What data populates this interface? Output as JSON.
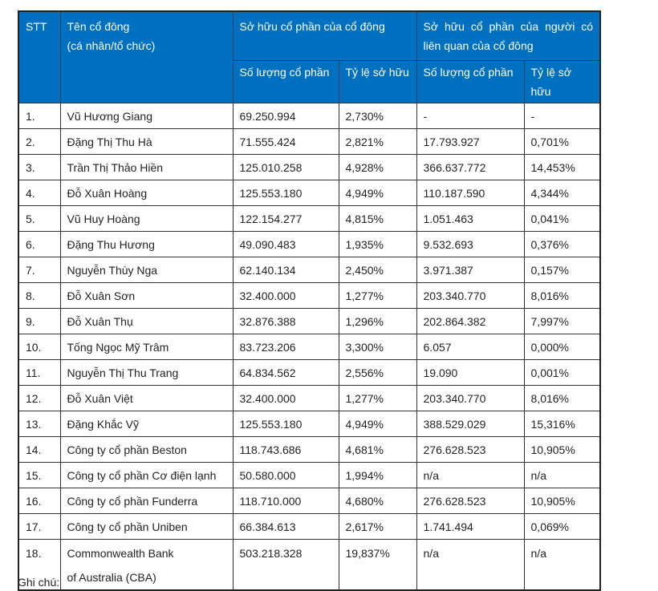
{
  "header": {
    "stt": "STT",
    "name": "Tên cổ đông",
    "name_sub": "(cá nhân/tổ chức)",
    "own": "Sở hữu cổ phần của cổ đông",
    "related": "Sở hữu cổ phần của người có liên quan của cổ đông",
    "qty": "Số lượng cổ phần",
    "pct": "Tỷ lệ sở hữu",
    "qty2": "Số lượng cổ phần",
    "pct2": "Tỷ lệ sở hữu"
  },
  "rows": [
    [
      "1.",
      "Vũ Hương Giang",
      "69.250.994",
      "2,730%",
      "-",
      "-"
    ],
    [
      "2.",
      "Đặng Thị Thu Hà",
      "71.555.424",
      "2,821%",
      "17.793.927",
      "0,701%"
    ],
    [
      "3.",
      "Trần Thị Thảo Hiền",
      "125.010.258",
      "4,928%",
      "366.637.772",
      "14,453%"
    ],
    [
      "4.",
      "Đỗ Xuân Hoàng",
      "125.553.180",
      "4,949%",
      "110.187.590",
      "4,344%"
    ],
    [
      "5.",
      "Vũ Huy Hoàng",
      "122.154.277",
      "4,815%",
      "1.051.463",
      "0,041%"
    ],
    [
      "6.",
      "Đặng Thu Hương",
      "49.090.483",
      "1,935%",
      "9.532.693",
      "0,376%"
    ],
    [
      "7.",
      "Nguyễn Thùy Nga",
      "62.140.134",
      "2,450%",
      "3.971.387",
      "0,157%"
    ],
    [
      "8.",
      "Đỗ Xuân Sơn",
      "32.400.000",
      "1,277%",
      "203.340.770",
      "8,016%"
    ],
    [
      "9.",
      "Đỗ Xuân Thụ",
      "32.876.388",
      "1,296%",
      "202.864.382",
      "7,997%"
    ],
    [
      "10.",
      "Tống Ngọc Mỹ Trâm",
      "83.723.206",
      "3,300%",
      "6.057",
      "0,000%"
    ],
    [
      "11.",
      "Nguyễn Thị Thu Trang",
      "64.834.562",
      "2,556%",
      "19.090",
      "0,001%"
    ],
    [
      "12.",
      "Đỗ Xuân Việt",
      "32.400.000",
      "1,277%",
      "203.340.770",
      "8,016%"
    ],
    [
      "13.",
      "Đặng Khắc Vỹ",
      "125.553.180",
      "4,949%",
      "388.529.029",
      "15,316%"
    ],
    [
      "14.",
      "Công ty cổ phần Beston",
      "118.743.686",
      "4,681%",
      "276.628.523",
      "10,905%"
    ],
    [
      "15.",
      "Công ty cổ phần Cơ điện lạnh",
      "50.580.000",
      "1,994%",
      "n/a",
      "n/a"
    ],
    [
      "16.",
      "Công ty cổ phần Funderra",
      "118.710.000",
      "4,680%",
      "276.628.523",
      "10,905%"
    ],
    [
      "17.",
      "Công ty cổ phần Uniben",
      "66.384.613",
      "2,617%",
      "1.741.494",
      "0,069%"
    ]
  ],
  "last": {
    "stt": "18.",
    "name1": "Commonwealth Bank",
    "name2": "of Australia (CBA)",
    "qty": "503.218.328",
    "pct": "19,837%",
    "qty2": "n/a",
    "pct2": "n/a"
  },
  "note": "Ghi chú:"
}
